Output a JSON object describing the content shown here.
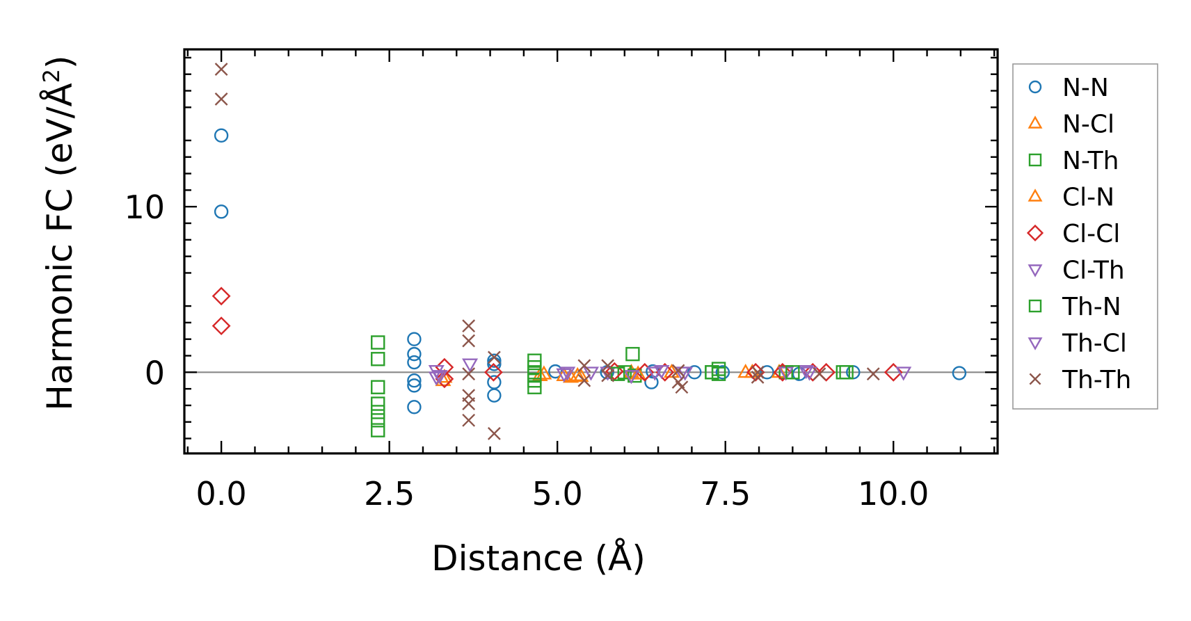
{
  "chart_data": {
    "type": "scatter",
    "xlabel": "Distance (Å)",
    "ylabel": "Harmonic FC (eV/Å",
    "ylabel_sup": "2",
    "ylabel_close": ")",
    "xlim": [
      -0.55,
      11.55
    ],
    "ylim": [
      -4.9,
      19.5
    ],
    "xticks": [
      0.0,
      2.5,
      5.0,
      7.5,
      10.0
    ],
    "xtick_labels": [
      "0.0",
      "2.5",
      "5.0",
      "7.5",
      "10.0"
    ],
    "yticks": [
      0,
      10
    ],
    "ytick_labels": [
      "0",
      "10"
    ],
    "zero_line": true,
    "grid": false,
    "legend_position": "right, outside",
    "series": [
      {
        "name": "N-N",
        "marker": "circle",
        "color": "#1f77b4",
        "points": [
          [
            0.0,
            14.3
          ],
          [
            0.0,
            9.7
          ],
          [
            2.87,
            2.0
          ],
          [
            2.87,
            1.1
          ],
          [
            2.87,
            0.6
          ],
          [
            2.87,
            -0.5
          ],
          [
            2.87,
            -0.8
          ],
          [
            2.87,
            -2.1
          ],
          [
            4.06,
            0.7
          ],
          [
            4.06,
            0.5
          ],
          [
            4.06,
            -0.6
          ],
          [
            4.06,
            -1.4
          ],
          [
            4.97,
            0.05
          ],
          [
            5.74,
            0.0
          ],
          [
            6.4,
            -0.6
          ],
          [
            6.42,
            0.05
          ],
          [
            7.04,
            0.0
          ],
          [
            7.46,
            0.0
          ],
          [
            8.12,
            0.0
          ],
          [
            8.6,
            -0.1
          ],
          [
            9.4,
            0.0
          ],
          [
            10.98,
            -0.05
          ]
        ]
      },
      {
        "name": "N-Cl",
        "marker": "triangle-up",
        "color": "#ff7f0e",
        "points": [
          [
            3.3,
            -0.5
          ],
          [
            4.74,
            -0.2
          ],
          [
            5.2,
            -0.3
          ],
          [
            5.3,
            -0.2
          ],
          [
            6.1,
            0.0
          ],
          [
            6.7,
            0.0
          ],
          [
            7.8,
            0.0
          ],
          [
            8.3,
            0.0
          ]
        ]
      },
      {
        "name": "N-Th",
        "marker": "square",
        "color": "#2ca02c",
        "points": [
          [
            2.33,
            1.8
          ],
          [
            2.33,
            0.8
          ],
          [
            2.33,
            -0.9
          ],
          [
            2.33,
            -1.9
          ],
          [
            2.33,
            -2.4
          ],
          [
            2.33,
            -2.9
          ],
          [
            2.33,
            -3.5
          ],
          [
            4.66,
            0.7
          ],
          [
            4.66,
            0.3
          ],
          [
            4.66,
            -0.2
          ],
          [
            4.66,
            -0.5
          ],
          [
            4.66,
            -0.9
          ],
          [
            6.0,
            0.0
          ],
          [
            6.12,
            1.1
          ],
          [
            6.15,
            -0.2
          ],
          [
            7.3,
            0.0
          ],
          [
            7.4,
            0.2
          ],
          [
            8.4,
            0.0
          ],
          [
            9.3,
            0.0
          ]
        ]
      },
      {
        "name": "Cl-N",
        "marker": "triangle-up",
        "color": "#ff7f0e",
        "points": [
          [
            3.32,
            -0.3
          ],
          [
            4.8,
            -0.1
          ],
          [
            5.1,
            -0.2
          ],
          [
            5.35,
            -0.25
          ],
          [
            6.2,
            -0.1
          ],
          [
            7.9,
            0.0
          ]
        ]
      },
      {
        "name": "Cl-Cl",
        "marker": "diamond",
        "color": "#d62728",
        "points": [
          [
            0.0,
            4.6
          ],
          [
            0.0,
            2.8
          ],
          [
            3.32,
            0.3
          ],
          [
            3.32,
            -0.4
          ],
          [
            4.05,
            0.0
          ],
          [
            5.85,
            0.05
          ],
          [
            6.3,
            0.0
          ],
          [
            6.6,
            0.0
          ],
          [
            7.95,
            0.0
          ],
          [
            8.35,
            0.0
          ],
          [
            8.8,
            0.0
          ],
          [
            9.0,
            0.0
          ],
          [
            10.0,
            0.0
          ]
        ]
      },
      {
        "name": "Cl-Th",
        "marker": "triangle-down",
        "color": "#9467bd",
        "points": [
          [
            3.2,
            0.1
          ],
          [
            3.2,
            -0.3
          ],
          [
            3.7,
            0.5
          ],
          [
            5.1,
            -0.1
          ],
          [
            5.5,
            0.0
          ],
          [
            5.75,
            0.0
          ],
          [
            6.1,
            -0.2
          ],
          [
            6.55,
            0.1
          ],
          [
            6.9,
            0.0
          ],
          [
            8.4,
            0.0
          ],
          [
            8.7,
            0.1
          ],
          [
            10.15,
            0.0
          ]
        ]
      },
      {
        "name": "Th-N",
        "marker": "square",
        "color": "#2ca02c",
        "points": [
          [
            4.66,
            0.0
          ],
          [
            5.9,
            -0.1
          ],
          [
            7.3,
            0.0
          ],
          [
            7.4,
            -0.1
          ],
          [
            8.5,
            0.0
          ],
          [
            9.25,
            0.0
          ]
        ]
      },
      {
        "name": "Th-Cl",
        "marker": "triangle-down",
        "color": "#9467bd",
        "points": [
          [
            3.25,
            -0.2
          ],
          [
            5.15,
            0.0
          ],
          [
            6.45,
            0.0
          ],
          [
            6.85,
            0.0
          ],
          [
            8.75,
            0.0
          ]
        ]
      },
      {
        "name": "Th-Th",
        "marker": "x",
        "color": "#8c564b",
        "points": [
          [
            0.0,
            18.3
          ],
          [
            0.0,
            16.5
          ],
          [
            3.68,
            2.8
          ],
          [
            3.68,
            1.9
          ],
          [
            3.68,
            -0.1
          ],
          [
            3.68,
            -1.4
          ],
          [
            3.68,
            -1.9
          ],
          [
            3.68,
            -2.9
          ],
          [
            4.06,
            0.9
          ],
          [
            4.06,
            -3.7
          ],
          [
            5.4,
            0.4
          ],
          [
            5.4,
            -0.5
          ],
          [
            5.75,
            0.4
          ],
          [
            5.75,
            -0.2
          ],
          [
            6.8,
            0.1
          ],
          [
            6.8,
            -0.6
          ],
          [
            6.85,
            -0.9
          ],
          [
            7.98,
            0.0
          ],
          [
            7.98,
            -0.3
          ],
          [
            8.9,
            -0.1
          ],
          [
            9.7,
            -0.1
          ]
        ]
      }
    ]
  }
}
